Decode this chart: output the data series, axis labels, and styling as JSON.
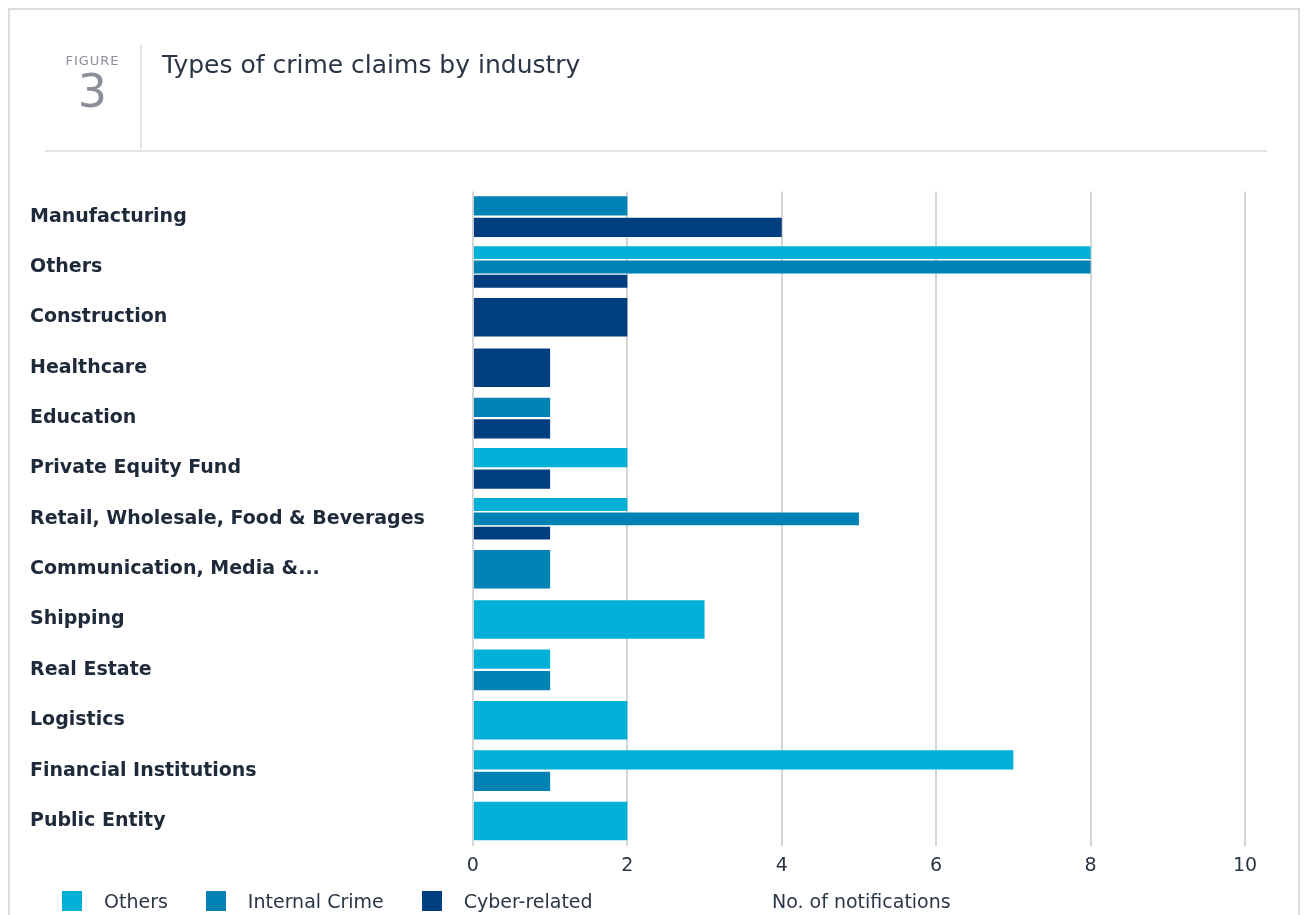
{
  "chart_data": {
    "type": "bar",
    "orientation": "horizontal",
    "title": "Types of crime claims by industry",
    "annotations": [
      "FIGURE",
      "3"
    ],
    "xlabel": "No. of notifications",
    "categories": [
      "Manufacturing",
      "Others",
      "Construction",
      "Healthcare",
      "Education",
      "Private Equity Fund",
      "Retail, Wholesale, Food & Beverages",
      "Communication, Media &...",
      "Shipping",
      "Real Estate",
      "Logistics",
      "Financial Institutions",
      "Public Entity"
    ],
    "series": [
      {
        "name": "Others",
        "color": "#00b0d6",
        "values": [
          null,
          8,
          null,
          null,
          null,
          2,
          2,
          null,
          3,
          1,
          2,
          7,
          2
        ]
      },
      {
        "name": "Internal Crime",
        "color": "#0082b4",
        "values": [
          2,
          8,
          null,
          null,
          1,
          null,
          5,
          1,
          null,
          1,
          null,
          1,
          null
        ]
      },
      {
        "name": "Cyber-related",
        "color": "#003f7f",
        "values": [
          4,
          2,
          2,
          1,
          1,
          1,
          1,
          null,
          null,
          null,
          null,
          null,
          null
        ]
      }
    ],
    "xlim": [
      0,
      10
    ],
    "xticks": [
      0,
      2,
      4,
      6,
      8,
      10
    ],
    "grid": "x",
    "legend": "bottom left"
  }
}
